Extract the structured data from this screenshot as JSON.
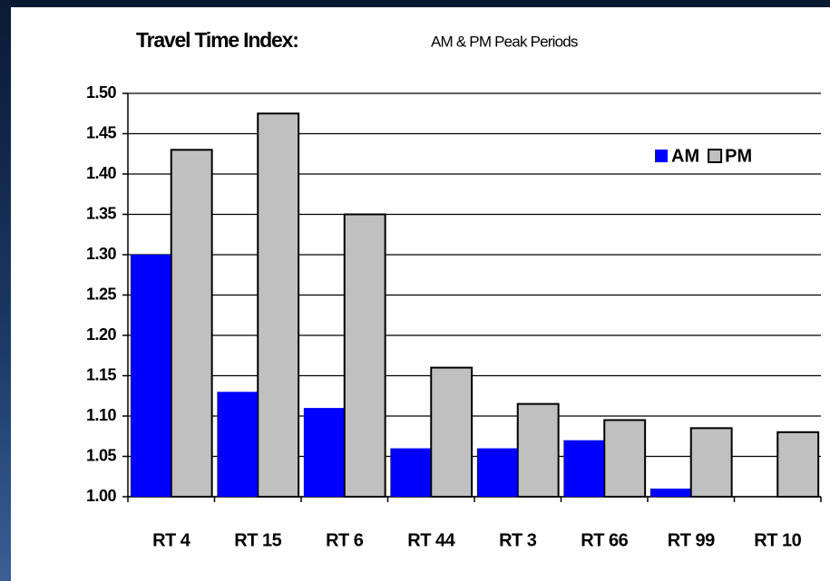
{
  "chart_data": {
    "type": "bar",
    "title": "Travel Time Index:",
    "subtitle": "AM & PM Peak Periods",
    "categories": [
      "RT 4",
      "RT 15",
      "RT 6",
      "RT 44",
      "RT 3",
      "RT 66",
      "RT 99",
      "RT 10"
    ],
    "series": [
      {
        "name": "AM",
        "color": "#0000ff",
        "values": [
          1.3,
          1.13,
          1.11,
          1.06,
          1.06,
          1.07,
          1.01,
          null
        ]
      },
      {
        "name": "PM",
        "color": "#c0c0c0",
        "values": [
          1.43,
          1.475,
          1.35,
          1.16,
          1.115,
          1.095,
          1.085,
          1.08
        ]
      }
    ],
    "ylim": [
      1.0,
      1.5
    ],
    "yticks": [
      {
        "value": 1.0,
        "label": "1.00"
      },
      {
        "value": 1.05,
        "label": "1.05"
      },
      {
        "value": 1.1,
        "label": "1.10"
      },
      {
        "value": 1.15,
        "label": "1.15"
      },
      {
        "value": 1.2,
        "label": "1.20"
      },
      {
        "value": 1.25,
        "label": "1.25"
      },
      {
        "value": 1.3,
        "label": "1.30"
      },
      {
        "value": 1.35,
        "label": "1.35"
      },
      {
        "value": 1.4,
        "label": "1.40"
      },
      {
        "value": 1.45,
        "label": "1.45"
      },
      {
        "value": 1.5,
        "label": "1.50"
      }
    ],
    "grid": true,
    "legend": "upper right"
  }
}
